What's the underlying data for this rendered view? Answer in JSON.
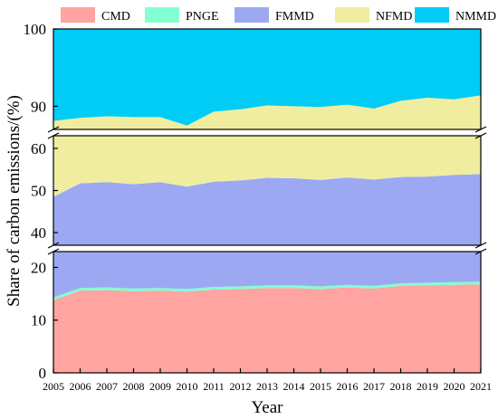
{
  "chart_data": {
    "type": "area",
    "stacked": true,
    "xlabel": "Year",
    "ylabel": "Share of carbon emissions/(%)",
    "x": [
      2005,
      2006,
      2007,
      2008,
      2009,
      2010,
      2011,
      2012,
      2013,
      2014,
      2015,
      2016,
      2017,
      2018,
      2019,
      2020,
      2021
    ],
    "ylim": [
      0,
      100
    ],
    "y_axis_breaks": [
      [
        23,
        37
      ],
      [
        63,
        87
      ]
    ],
    "y_segments": [
      {
        "range": [
          0,
          23
        ],
        "ticks": [
          0,
          10,
          20
        ]
      },
      {
        "range": [
          37,
          63
        ],
        "ticks": [
          40,
          50,
          60
        ]
      },
      {
        "range": [
          87,
          100
        ],
        "ticks": [
          90,
          100
        ]
      }
    ],
    "legend_position": "top",
    "series": [
      {
        "name": "CMD",
        "color": "#FFA4A0",
        "values": [
          13.8,
          15.6,
          15.7,
          15.5,
          15.6,
          15.4,
          15.8,
          15.9,
          16.1,
          16.1,
          15.9,
          16.2,
          16.0,
          16.5,
          16.6,
          16.7,
          16.8
        ]
      },
      {
        "name": "PNGE",
        "color": "#82FFD3",
        "values": [
          0.5,
          0.5,
          0.5,
          0.5,
          0.5,
          0.5,
          0.5,
          0.5,
          0.5,
          0.5,
          0.5,
          0.5,
          0.5,
          0.5,
          0.5,
          0.5,
          0.5
        ]
      },
      {
        "name": "FMMD",
        "color": "#9CA9F2",
        "values": [
          34.2,
          35.6,
          35.8,
          35.5,
          35.9,
          35.0,
          35.8,
          36.0,
          36.4,
          36.3,
          36.1,
          36.4,
          36.1,
          36.2,
          36.2,
          36.5,
          36.6
        ]
      },
      {
        "name": "NFMD",
        "color": "#F0EDA0",
        "values": [
          39.6,
          36.8,
          36.7,
          37.1,
          36.6,
          36.6,
          37.2,
          37.2,
          37.1,
          37.1,
          37.4,
          37.1,
          37.1,
          37.5,
          37.8,
          37.2,
          37.5
        ]
      },
      {
        "name": "NMMD",
        "color": "#00CCF5",
        "values": [
          11.9,
          11.5,
          11.3,
          11.4,
          11.4,
          12.5,
          10.7,
          10.4,
          9.9,
          10.0,
          10.1,
          9.8,
          10.3,
          9.3,
          8.9,
          9.1,
          8.6
        ]
      }
    ]
  }
}
